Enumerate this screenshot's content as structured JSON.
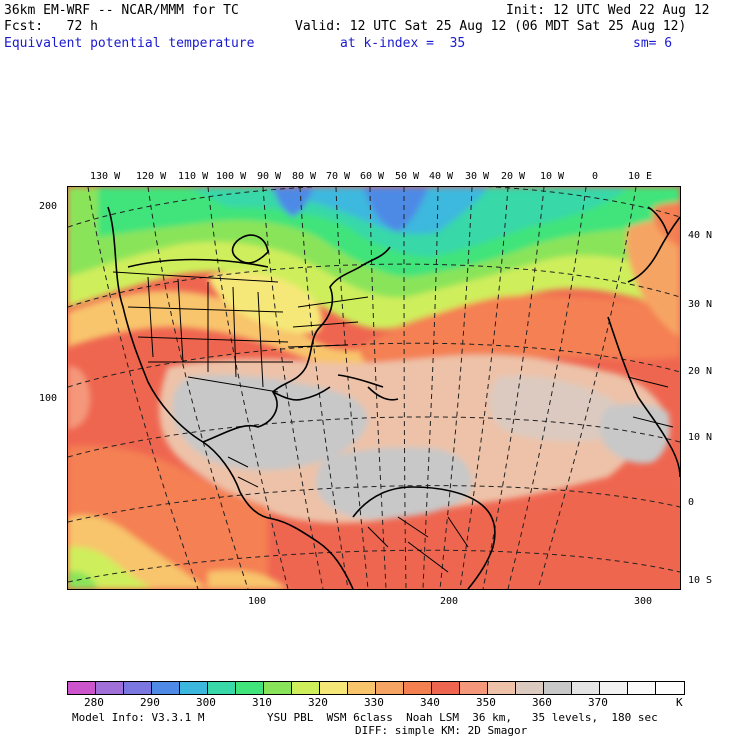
{
  "header": {
    "model": "36km EM-WRF -- NCAR/MMM for TC",
    "init": "Init: 12 UTC Wed 22 Aug 12",
    "fcst": "Fcst:   72 h",
    "valid": "Valid: 12 UTC Sat 25 Aug 12 (06 MDT Sat 25 Aug 12)",
    "field": "Equivalent potential temperature",
    "level": "at k-index =  35",
    "smooth": "sm= 6"
  },
  "map": {
    "top_lon_labels": [
      "130 W",
      "120 W",
      "110 W",
      "100 W",
      "90 W",
      "80 W",
      "70 W",
      "60 W",
      "50 W",
      "40 W",
      "30 W",
      "20 W",
      "10 W",
      "0",
      "10 E"
    ],
    "right_lat_labels": [
      "40 N",
      "30 N",
      "20 N",
      "10 N",
      "0",
      "10 S"
    ],
    "left_grid_labels": [
      "200",
      "100"
    ],
    "bottom_grid_labels": [
      "100",
      "200",
      "300"
    ]
  },
  "colorbar": {
    "colors": [
      "#cc55cc",
      "#a070d8",
      "#7a78e0",
      "#4e8ae6",
      "#3cb8de",
      "#38d8a8",
      "#40e47a",
      "#8ae45a",
      "#cfee5c",
      "#f6e878",
      "#f8c46c",
      "#f6a464",
      "#f48052",
      "#ef6650",
      "#f4977a",
      "#edc2a8",
      "#dccac0",
      "#c8c8c8",
      "#e4e4e4",
      "#f2f2f2",
      "#fbfbfb",
      "#ffffff"
    ],
    "labels": [
      "280",
      "290",
      "300",
      "310",
      "320",
      "330",
      "340",
      "350",
      "360",
      "370"
    ],
    "unit": "K"
  },
  "footer": {
    "model_info": "Model Info: V3.3.1 M",
    "physics": "YSU PBL  WSM 6class  Noah LSM  36 km,   35 levels,  180 sec",
    "physics2": "DIFF: simple KM: 2D Smagor"
  }
}
